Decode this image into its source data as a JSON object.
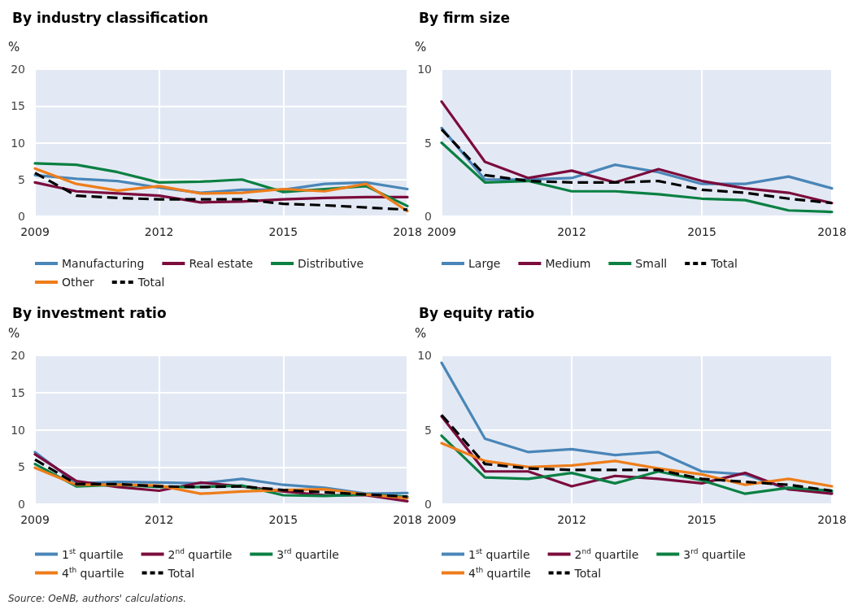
{
  "chart_data": [
    {
      "type": "line",
      "title": "By industry classification",
      "ylabel": "%",
      "x": [
        2009,
        2010,
        2011,
        2012,
        2013,
        2014,
        2015,
        2016,
        2017,
        2018
      ],
      "xlim": [
        2009,
        2018
      ],
      "xticks": [
        2009,
        2012,
        2015,
        2018
      ],
      "ylim": [
        0,
        20
      ],
      "yticks": [
        0,
        5,
        10,
        15,
        20
      ],
      "grid": true,
      "legend": "bottom",
      "line_style": "solid",
      "marker": "none",
      "series": [
        {
          "name": "Manufacturing",
          "color": "#4a86b8",
          "values": [
            5.6,
            5.1,
            4.8,
            3.9,
            3.2,
            3.6,
            3.6,
            4.4,
            4.6,
            3.7
          ]
        },
        {
          "name": "Real estate",
          "color": "#7b0c3c",
          "values": [
            4.6,
            3.4,
            3.1,
            2.8,
            1.9,
            2.0,
            2.3,
            2.5,
            2.6,
            2.6
          ]
        },
        {
          "name": "Distributive",
          "color": "#0a8043",
          "values": [
            7.2,
            7.0,
            6.0,
            4.6,
            4.7,
            5.0,
            3.3,
            3.7,
            4.1,
            1.4
          ]
        },
        {
          "name": "Other",
          "color": "#ee7d1a",
          "values": [
            6.5,
            4.4,
            3.5,
            4.1,
            3.1,
            3.2,
            3.7,
            3.4,
            4.4,
            0.7
          ]
        },
        {
          "name": "Total",
          "color": "#000000",
          "line_style": "dashed",
          "values": [
            5.9,
            2.8,
            2.5,
            2.3,
            2.3,
            2.3,
            1.7,
            1.5,
            1.2,
            0.9
          ]
        }
      ]
    },
    {
      "type": "line",
      "title": "By firm size",
      "ylabel": "%",
      "x": [
        2009,
        2010,
        2011,
        2012,
        2013,
        2014,
        2015,
        2016,
        2017,
        2018
      ],
      "xlim": [
        2009,
        2018
      ],
      "xticks": [
        2009,
        2012,
        2015,
        2018
      ],
      "ylim": [
        0,
        10
      ],
      "yticks": [
        0,
        5,
        10
      ],
      "grid": true,
      "legend": "bottom",
      "line_style": "solid",
      "marker": "none",
      "series": [
        {
          "name": "Large",
          "color": "#4a86b8",
          "values": [
            6.0,
            2.5,
            2.5,
            2.6,
            3.5,
            3.0,
            2.2,
            2.2,
            2.7,
            1.9
          ]
        },
        {
          "name": "Medium",
          "color": "#7b0c3c",
          "values": [
            7.8,
            3.7,
            2.6,
            3.1,
            2.3,
            3.2,
            2.4,
            1.9,
            1.6,
            0.9
          ]
        },
        {
          "name": "Small",
          "color": "#0a8043",
          "values": [
            5.0,
            2.3,
            2.4,
            1.7,
            1.7,
            1.5,
            1.2,
            1.1,
            0.4,
            0.3
          ]
        },
        {
          "name": "Total",
          "color": "#000000",
          "line_style": "dashed",
          "values": [
            5.9,
            2.8,
            2.4,
            2.3,
            2.3,
            2.4,
            1.8,
            1.6,
            1.2,
            0.9
          ]
        }
      ]
    },
    {
      "type": "line",
      "title": "By investment ratio",
      "ylabel": "%",
      "annotations": [
        "Source: OeNB, authors' calculations."
      ],
      "x": [
        2009,
        2010,
        2011,
        2012,
        2013,
        2014,
        2015,
        2016,
        2017,
        2018
      ],
      "xlim": [
        2009,
        2018
      ],
      "xticks": [
        2009,
        2012,
        2015,
        2018
      ],
      "ylim": [
        0,
        20
      ],
      "yticks": [
        0,
        5,
        10,
        15,
        20
      ],
      "grid": true,
      "legend": "bottom",
      "line_style": "solid",
      "marker": "none",
      "series": [
        {
          "name": "1$^{st}$ quartile",
          "color": "#4a86b8",
          "values": [
            7.0,
            2.8,
            3.0,
            2.9,
            2.8,
            3.4,
            2.6,
            2.2,
            1.4,
            1.5
          ]
        },
        {
          "name": "2$^{nd}$ quartile",
          "color": "#7b0c3c",
          "values": [
            6.7,
            3.1,
            2.3,
            1.8,
            2.9,
            2.4,
            1.7,
            1.2,
            1.2,
            0.4
          ]
        },
        {
          "name": "3$^{rd}$ quartile",
          "color": "#0a8043",
          "values": [
            5.4,
            2.4,
            2.6,
            2.3,
            2.3,
            2.5,
            1.2,
            1.1,
            1.3,
            1.0
          ]
        },
        {
          "name": "4$^{th}$ quartile",
          "color": "#ee7d1a",
          "values": [
            4.9,
            2.6,
            2.6,
            2.5,
            1.4,
            1.7,
            1.9,
            2.0,
            1.3,
            0.8
          ]
        },
        {
          "name": "Total",
          "color": "#000000",
          "line_style": "dashed",
          "values": [
            6.0,
            2.7,
            2.7,
            2.4,
            2.3,
            2.4,
            1.9,
            1.6,
            1.3,
            1.0
          ]
        }
      ]
    },
    {
      "type": "line",
      "title": "By equity ratio",
      "ylabel": "%",
      "x": [
        2009,
        2010,
        2011,
        2012,
        2013,
        2014,
        2015,
        2016,
        2017,
        2018
      ],
      "xlim": [
        2009,
        2018
      ],
      "xticks": [
        2009,
        2012,
        2015,
        2018
      ],
      "ylim": [
        0,
        10
      ],
      "yticks": [
        0,
        5,
        10
      ],
      "grid": true,
      "legend": "bottom",
      "line_style": "solid",
      "marker": "none",
      "series": [
        {
          "name": "1$^{st}$ quartile",
          "color": "#4a86b8",
          "values": [
            9.5,
            4.4,
            3.5,
            3.7,
            3.3,
            3.5,
            2.2,
            2.0,
            1.0,
            0.8
          ]
        },
        {
          "name": "2$^{nd}$ quartile",
          "color": "#7b0c3c",
          "values": [
            5.9,
            2.2,
            2.2,
            1.2,
            1.9,
            1.7,
            1.4,
            2.1,
            1.0,
            0.7
          ]
        },
        {
          "name": "3$^{rd}$ quartile",
          "color": "#0a8043",
          "values": [
            4.6,
            1.8,
            1.7,
            2.1,
            1.4,
            2.2,
            1.6,
            0.7,
            1.1,
            0.9
          ]
        },
        {
          "name": "4$^{th}$ quartile",
          "color": "#ee7d1a",
          "values": [
            4.1,
            2.9,
            2.5,
            2.6,
            2.9,
            2.4,
            2.0,
            1.3,
            1.7,
            1.2
          ]
        },
        {
          "name": "Total",
          "color": "#000000",
          "line_style": "dashed",
          "values": [
            6.0,
            2.7,
            2.4,
            2.3,
            2.3,
            2.3,
            1.7,
            1.5,
            1.3,
            0.9
          ]
        }
      ]
    }
  ]
}
